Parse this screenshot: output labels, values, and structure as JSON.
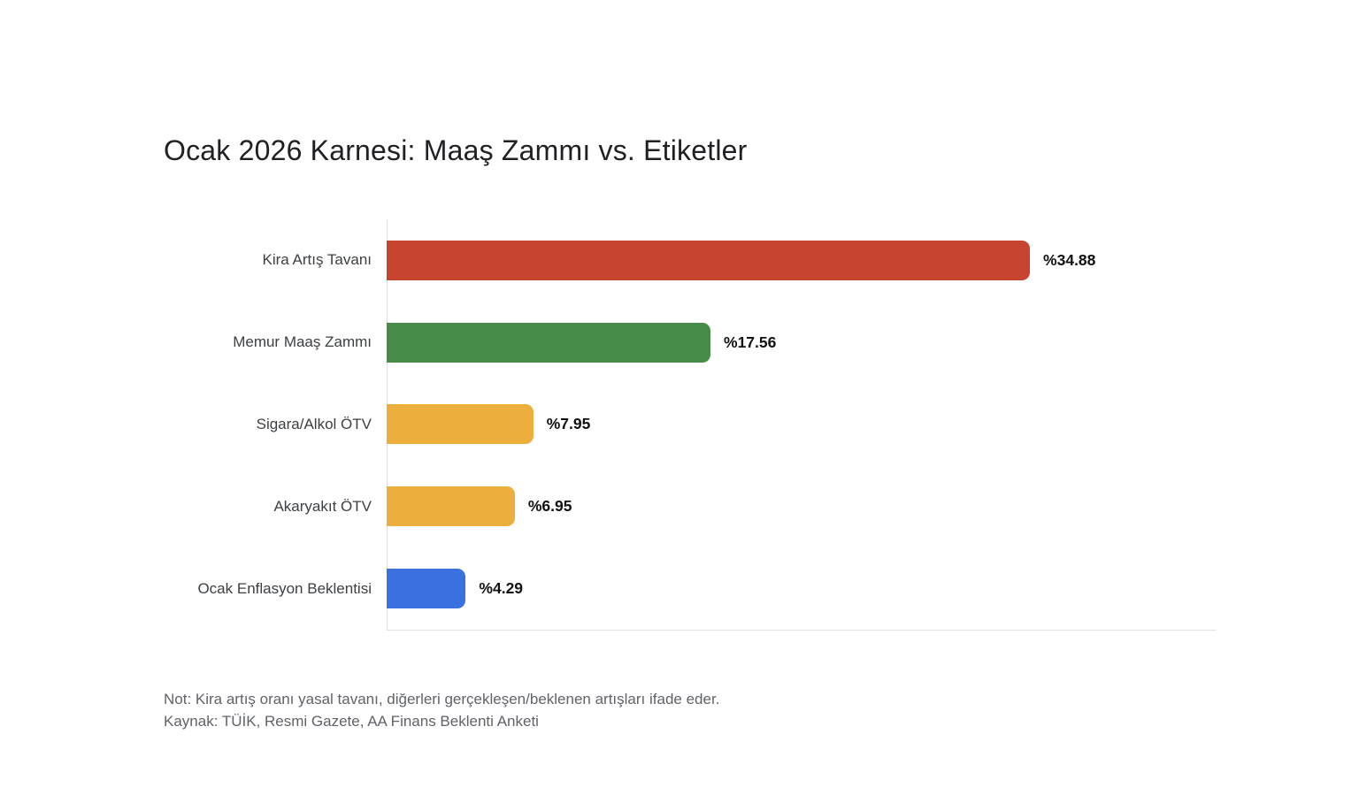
{
  "chart_data": {
    "type": "bar",
    "orientation": "horizontal",
    "title": "Ocak 2026 Karnesi: Maaş Zammı vs. Etiketler",
    "categories": [
      "Kira Artış Tavanı",
      "Memur Maaş Zammı",
      "Sigara/Alkol ÖTV",
      "Akaryakıt ÖTV",
      "Ocak Enflasyon Beklentisi"
    ],
    "values": [
      34.88,
      17.56,
      7.95,
      6.95,
      4.29
    ],
    "value_labels": [
      "%34.88",
      "%17.56",
      "%7.95",
      "%6.95",
      "%4.29"
    ],
    "bar_colors": [
      "#c5432f",
      "#468c48",
      "#ecaf3e",
      "#ecaf3e",
      "#3b71de"
    ],
    "xlim": [
      0,
      45
    ],
    "grid": false,
    "legend": "none",
    "axis_color": "#e2e2e2",
    "notes": [
      "Not: Kira artış oranı yasal tavanı, diğerleri gerçekleşen/beklenen artışları ifade eder.",
      "Kaynak: TÜİK, Resmi Gazete, AA Finans Beklenti Anketi"
    ]
  }
}
